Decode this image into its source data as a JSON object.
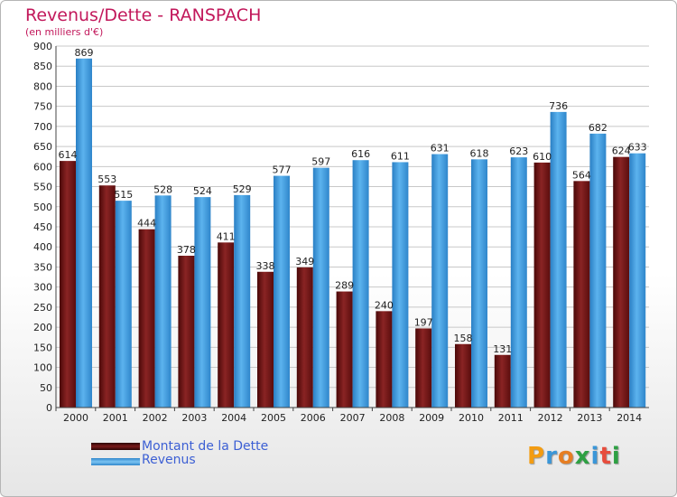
{
  "title": "Revenus/Dette - RANSPACH",
  "subtitle": "(en milliers d'€)",
  "colors": {
    "dette": "#6b1212",
    "revenus": "#3a96d8",
    "accent": "#c2185b"
  },
  "legend": [
    {
      "label": "Montant de la Dette",
      "color": "#6b1212"
    },
    {
      "label": "Revenus",
      "color": "#3a96d8"
    }
  ],
  "logo": {
    "text": "Proxiti",
    "colors": [
      "#f39c12",
      "#3a96d8",
      "#e67e22",
      "#2ea043",
      "#3a96d8",
      "#e74c3c",
      "#2ea043"
    ]
  },
  "chart_data": {
    "type": "bar",
    "categories": [
      "2000",
      "2001",
      "2002",
      "2003",
      "2004",
      "2005",
      "2006",
      "2007",
      "2008",
      "2009",
      "2010",
      "2011",
      "2012",
      "2013",
      "2014"
    ],
    "series": [
      {
        "name": "Montant de la Dette",
        "values": [
          614,
          553,
          444,
          378,
          411,
          338,
          349,
          289,
          240,
          197,
          158,
          131,
          610,
          564,
          624
        ]
      },
      {
        "name": "Revenus",
        "values": [
          869,
          515,
          528,
          524,
          529,
          577,
          597,
          616,
          611,
          631,
          618,
          623,
          736,
          682,
          633
        ]
      }
    ],
    "title": "Revenus/Dette - RANSPACH",
    "ylabel": "(en milliers d'€)",
    "ylim": [
      0,
      900
    ],
    "yticks": [
      0,
      50,
      100,
      150,
      200,
      250,
      300,
      350,
      400,
      450,
      500,
      550,
      600,
      650,
      700,
      750,
      800,
      850,
      900
    ],
    "grid": true,
    "legend_position": "bottom-left"
  }
}
